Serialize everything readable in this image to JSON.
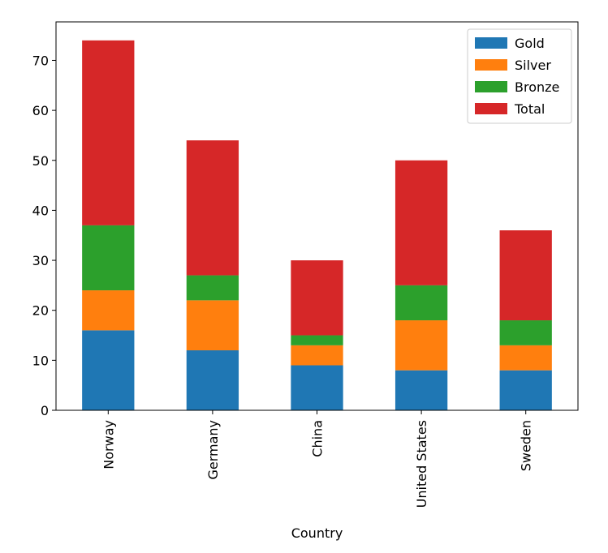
{
  "chart_data": {
    "type": "bar",
    "stacked": true,
    "categories": [
      "Norway",
      "Germany",
      "China",
      "United States",
      "Sweden"
    ],
    "series": [
      {
        "name": "Gold",
        "values": [
          16,
          12,
          9,
          8,
          8
        ],
        "color": "#1f77b4"
      },
      {
        "name": "Silver",
        "values": [
          8,
          10,
          4,
          10,
          5
        ],
        "color": "#ff7f0e"
      },
      {
        "name": "Bronze",
        "values": [
          13,
          5,
          2,
          7,
          5
        ],
        "color": "#2ca02c"
      },
      {
        "name": "Total",
        "values": [
          37,
          27,
          15,
          25,
          18
        ],
        "color": "#d62728"
      }
    ],
    "xlabel": "Country",
    "ylabel": "",
    "ylim": [
      0,
      77.7
    ],
    "yticks": [
      0,
      10,
      20,
      30,
      40,
      50,
      60,
      70
    ],
    "grid": false,
    "legend_position": "top-right"
  }
}
